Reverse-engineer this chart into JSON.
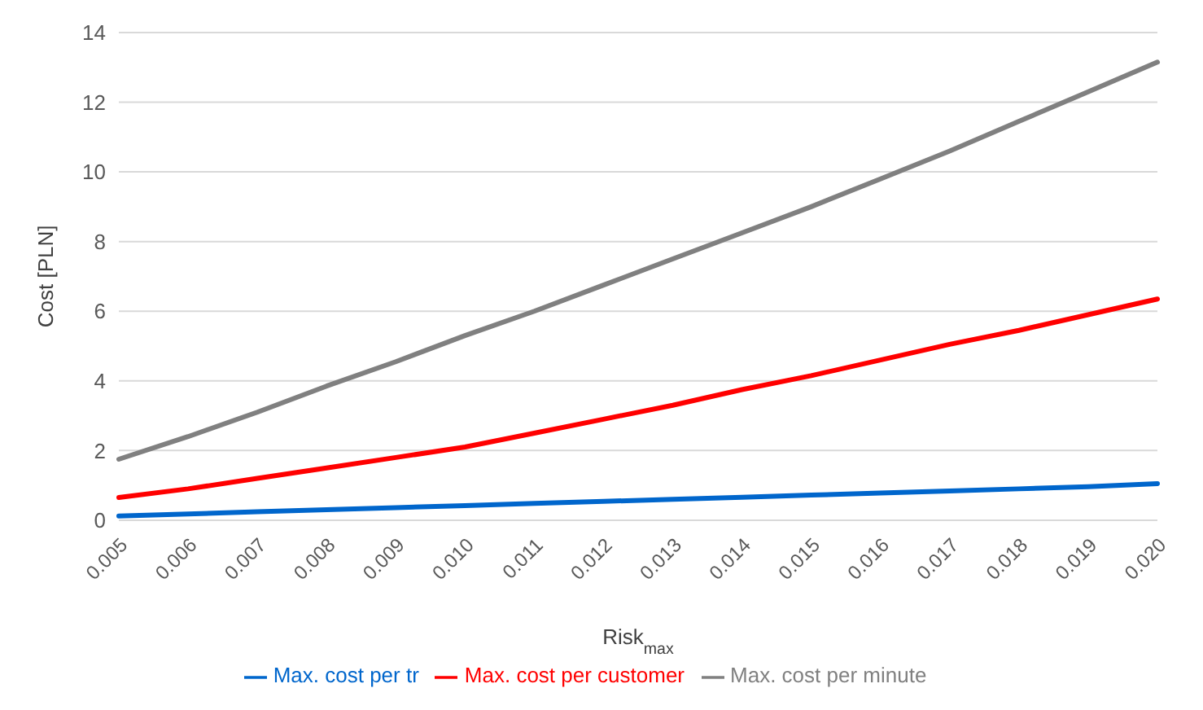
{
  "chart_data": {
    "type": "line",
    "xlabel": "Risk$_{max}$",
    "ylabel": "Cost [PLN]",
    "categories": [
      "0.005",
      "0.006",
      "0.007",
      "0.008",
      "0.009",
      "0.010",
      "0.011",
      "0.012",
      "0.013",
      "0.014",
      "0.015",
      "0.016",
      "0.017",
      "0.018",
      "0.019",
      "0.020"
    ],
    "series": [
      {
        "name": "Max. cost per tr",
        "color": "#0066cc",
        "values": [
          0.12,
          0.18,
          0.24,
          0.3,
          0.36,
          0.42,
          0.48,
          0.54,
          0.6,
          0.66,
          0.72,
          0.78,
          0.84,
          0.9,
          0.96,
          1.05
        ]
      },
      {
        "name": "Max. cost per customer",
        "color": "#ff0000",
        "values": [
          0.65,
          0.9,
          1.2,
          1.5,
          1.8,
          2.1,
          2.5,
          2.9,
          3.3,
          3.75,
          4.15,
          4.6,
          5.05,
          5.45,
          5.9,
          6.35
        ]
      },
      {
        "name": "Max. cost per minute",
        "color": "#808080",
        "values": [
          1.75,
          2.4,
          3.1,
          3.85,
          4.55,
          5.3,
          6.0,
          6.75,
          7.5,
          8.25,
          9.0,
          9.8,
          10.6,
          11.45,
          12.3,
          13.15
        ]
      }
    ],
    "ylim": [
      0,
      14
    ],
    "yticks": [
      0,
      2,
      4,
      6,
      8,
      10,
      12,
      14
    ],
    "grid": "y",
    "legend": "bottom",
    "marker": "none",
    "line_style": "solid"
  }
}
